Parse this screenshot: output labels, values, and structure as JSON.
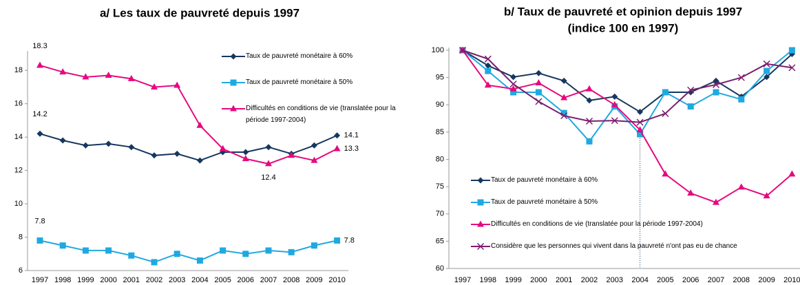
{
  "chart_data": [
    {
      "type": "line",
      "title": "a/ Les taux de pauvreté depuis 1997",
      "categories": [
        "1997",
        "1998",
        "1999",
        "2000",
        "2001",
        "2002",
        "2003",
        "2004",
        "2005",
        "2006",
        "2007",
        "2008",
        "2009",
        "2010"
      ],
      "ylim": [
        6,
        19
      ],
      "yticks": [
        6,
        8,
        10,
        12,
        14,
        16,
        18
      ],
      "grid": false,
      "legend": "upper right",
      "series": [
        {
          "name": "Taux de pauvreté monétaire à 60%",
          "color": "#17375e",
          "marker": "diamond",
          "values": [
            14.2,
            13.8,
            13.5,
            13.6,
            13.4,
            12.9,
            13.0,
            12.6,
            13.1,
            13.1,
            13.4,
            13.0,
            13.5,
            14.1
          ],
          "value_labels": [
            "14.2",
            null,
            null,
            null,
            null,
            null,
            null,
            null,
            null,
            null,
            null,
            null,
            null,
            "14.1"
          ]
        },
        {
          "name": "Taux de pauvreté monétaire à 50%",
          "color": "#1fa9e1",
          "marker": "square",
          "values": [
            7.8,
            7.5,
            7.2,
            7.2,
            6.9,
            6.5,
            7.0,
            6.6,
            7.2,
            7.0,
            7.2,
            7.1,
            7.5,
            7.8
          ],
          "value_labels": [
            "7.8",
            null,
            null,
            null,
            null,
            null,
            null,
            null,
            null,
            null,
            null,
            null,
            null,
            "7.8"
          ]
        },
        {
          "name": "Difficultés en conditions de vie (translatée pour la période 1997-2004)",
          "color": "#e5097f",
          "marker": "triangle",
          "values": [
            18.3,
            17.9,
            17.6,
            17.7,
            17.5,
            17.0,
            17.1,
            14.7,
            13.3,
            12.7,
            12.4,
            12.9,
            12.6,
            13.3
          ],
          "value_labels": [
            "18.3",
            null,
            null,
            null,
            null,
            null,
            null,
            null,
            null,
            null,
            "12.4",
            null,
            null,
            "13.3"
          ]
        }
      ]
    },
    {
      "type": "line",
      "title": "b/ Taux de pauvreté et opinion depuis 1997",
      "subtitle": "(indice 100 en 1997)",
      "categories": [
        "1997",
        "1998",
        "1999",
        "2000",
        "2001",
        "2002",
        "2003",
        "2004",
        "2005",
        "2006",
        "2007",
        "2008",
        "2009",
        "2010"
      ],
      "ylim": [
        60,
        100
      ],
      "yticks": [
        60,
        65,
        70,
        75,
        80,
        85,
        90,
        95,
        100
      ],
      "grid": false,
      "legend": "lower left",
      "series": [
        {
          "name": "Taux de pauvreté monétaire à 60%",
          "color": "#17375e",
          "marker": "diamond",
          "values": [
            100,
            97.2,
            95.1,
            95.8,
            94.4,
            90.8,
            91.5,
            88.7,
            92.3,
            92.3,
            94.4,
            91.5,
            95.1,
            99.3
          ]
        },
        {
          "name": "Taux de pauvreté monétaire à 50%",
          "color": "#1fa9e1",
          "marker": "square",
          "values": [
            100,
            96.2,
            92.3,
            92.3,
            88.5,
            83.3,
            89.7,
            84.6,
            92.3,
            89.7,
            92.3,
            91.0,
            96.2,
            100
          ]
        },
        {
          "name": "Difficultés en conditions de vie (translatée pour la période 1997-2004)",
          "color": "#e5097f",
          "marker": "triangle",
          "values": [
            100,
            93.6,
            92.9,
            94.0,
            91.3,
            92.9,
            90.0,
            85.4,
            77.3,
            73.8,
            72.1,
            74.9,
            73.3,
            77.3
          ]
        },
        {
          "name": "Considère que les personnes qui vivent dans la pauvreté n'ont pas eu de chance",
          "color": "#7b1c6e",
          "marker": "x",
          "values": [
            100,
            98.4,
            93.8,
            90.6,
            88.0,
            87.0,
            87.1,
            86.8,
            88.4,
            92.7,
            93.7,
            95.0,
            97.5,
            96.8
          ]
        }
      ]
    }
  ]
}
